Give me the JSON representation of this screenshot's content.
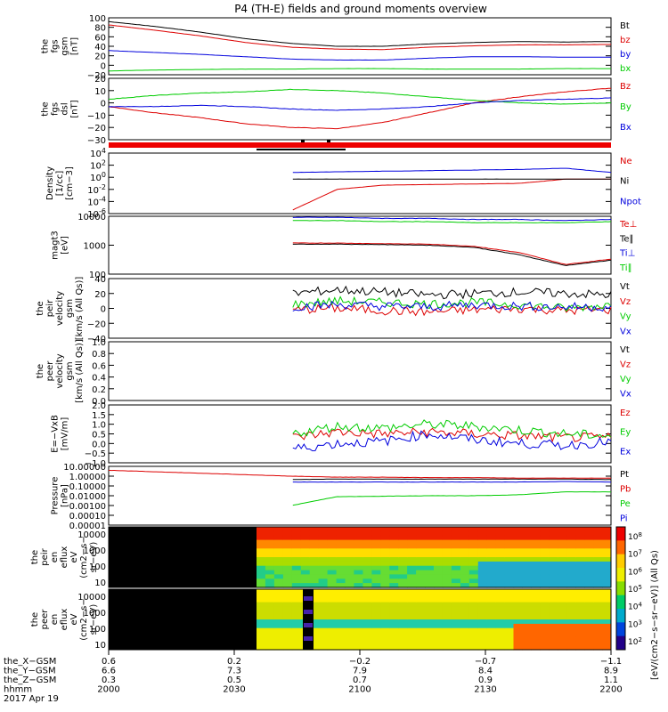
{
  "title": "P4 (TH-E) fields and ground moments overview",
  "chart_data": {
    "type": "line",
    "x_range": [
      "2000",
      "2200"
    ],
    "panels": [
      {
        "id": "fgs_gsm",
        "ylabel": [
          "the",
          "fgs",
          "gsm",
          "[nT]"
        ],
        "ylim": [
          -20,
          100
        ],
        "yticks": [
          "100",
          "80",
          "60",
          "40",
          "20",
          "0",
          "−20"
        ],
        "series": [
          {
            "name": "Bt",
            "color": "#000000",
            "values": [
              92,
              82,
              70,
              56,
              46,
              40,
              40,
              45,
              48,
              50,
              49,
              50
            ]
          },
          {
            "name": "bz",
            "color": "#dd0000",
            "values": [
              85,
              74,
              62,
              48,
              38,
              34,
              33,
              38,
              41,
              43,
              43,
              44
            ]
          },
          {
            "name": "by",
            "color": "#0000dd",
            "values": [
              31,
              27,
              23,
              18,
              13,
              11,
              11,
              15,
              18,
              18,
              17,
              17
            ]
          },
          {
            "name": "bx",
            "color": "#00cc00",
            "values": [
              -12,
              -10,
              -9,
              -8,
              -8,
              -7,
              -7,
              -8,
              -8,
              -8,
              -7,
              -7
            ]
          }
        ]
      },
      {
        "id": "fgs_dsl",
        "ylabel": [
          "the",
          "fgs",
          "dsl",
          "[nT]"
        ],
        "ylim": [
          -30,
          20
        ],
        "yticks": [
          "20",
          "10",
          "0",
          "−10",
          "−20",
          "−30"
        ],
        "series": [
          {
            "name": "Bz",
            "color": "#dd0000",
            "values": [
              -3,
              -8,
              -12,
              -17,
              -20,
              -21,
              -16,
              -8,
              0,
              5,
              9,
              12
            ]
          },
          {
            "name": "By",
            "color": "#00cc00",
            "values": [
              3,
              6,
              8,
              9,
              11,
              10,
              8,
              5,
              2,
              0,
              -1,
              0
            ]
          },
          {
            "name": "Bx",
            "color": "#0000dd",
            "values": [
              -3,
              -3,
              -2,
              -3,
              -5,
              -6,
              -5,
              -3,
              0,
              2,
              3,
              4
            ]
          }
        ]
      },
      {
        "id": "density",
        "ylabel": [
          "Density",
          "[1/cc]",
          "[cm−3]"
        ],
        "ylim": [
          -6,
          4
        ],
        "yticks": [
          "10^4",
          "10^2",
          "10^0",
          "10^-2",
          "10^-4",
          "10^-6"
        ],
        "log": true,
        "series": [
          {
            "name": "Ne",
            "color": "#dd0000",
            "values": [
              null,
              null,
              null,
              null,
              -5.5,
              -2,
              -1.3,
              -1.2,
              -1.1,
              -1,
              -0.3,
              -0.3
            ]
          },
          {
            "name": "Ni",
            "color": "#000000",
            "values": [
              null,
              null,
              null,
              null,
              -0.3,
              -0.3,
              -0.3,
              -0.3,
              -0.3,
              -0.3,
              -0.3,
              -0.3
            ]
          },
          {
            "name": "Npot",
            "color": "#0000dd",
            "values": [
              null,
              null,
              null,
              null,
              0.8,
              0.9,
              1,
              1.1,
              1.2,
              1.3,
              1.5,
              0.8
            ]
          }
        ]
      },
      {
        "id": "temperature",
        "ylabel": [
          "magt3",
          "[eV]"
        ],
        "ylim": [
          1.3,
          4
        ],
        "yticks": [
          "10000",
          "1000",
          "100"
        ],
        "log": true,
        "series": [
          {
            "name": "Te⊥",
            "color": "#dd0000",
            "values": [
              null,
              null,
              null,
              null,
              2.75,
              2.75,
              2.72,
              2.7,
              2.6,
              2.3,
              1.75,
              2
            ]
          },
          {
            "name": "Te∥",
            "color": "#000000",
            "values": [
              null,
              null,
              null,
              null,
              2.7,
              2.7,
              2.68,
              2.65,
              2.55,
              2.2,
              1.7,
              1.95
            ]
          },
          {
            "name": "Ti⊥",
            "color": "#0000dd",
            "values": [
              null,
              null,
              null,
              null,
              3.95,
              3.95,
              3.9,
              3.9,
              3.85,
              3.85,
              3.8,
              3.85
            ]
          },
          {
            "name": "Ti∥",
            "color": "#00cc00",
            "values": [
              null,
              null,
              null,
              null,
              3.8,
              3.8,
              3.75,
              3.75,
              3.7,
              3.7,
              3.7,
              3.75
            ]
          }
        ]
      },
      {
        "id": "peir_velocity",
        "ylabel": [
          "the",
          "peir",
          "velocity",
          "gsm",
          "[km/s (All Qs)]"
        ],
        "ylim": [
          -40,
          40
        ],
        "yticks": [
          "40",
          "20",
          "0",
          "−20",
          "−40"
        ],
        "series": [
          {
            "name": "Vt",
            "color": "#000000",
            "values": [
              null,
              null,
              null,
              null,
              20,
              25,
              22,
              18,
              20,
              22,
              20,
              18
            ]
          },
          {
            "name": "Vz",
            "color": "#dd0000",
            "values": [
              null,
              null,
              null,
              null,
              -2,
              0,
              -3,
              -5,
              -2,
              0,
              -3,
              -2
            ]
          },
          {
            "name": "Vy",
            "color": "#00cc00",
            "values": [
              null,
              null,
              null,
              null,
              5,
              10,
              8,
              6,
              8,
              5,
              0,
              5
            ]
          },
          {
            "name": "Vx",
            "color": "#0000dd",
            "values": [
              null,
              null,
              null,
              null,
              2,
              5,
              3,
              2,
              5,
              3,
              2,
              2
            ]
          }
        ]
      },
      {
        "id": "peer_velocity",
        "ylabel": [
          "the",
          "peer",
          "velocity",
          "gsm",
          "[km/s (All Qs)]"
        ],
        "ylim": [
          0,
          1
        ],
        "yticks": [
          "1.0",
          "0.8",
          "0.6",
          "0.4",
          "0.2",
          "0.0"
        ],
        "series": [
          {
            "name": "Vt",
            "color": "#000000",
            "values": []
          },
          {
            "name": "Vz",
            "color": "#dd0000",
            "values": []
          },
          {
            "name": "Vy",
            "color": "#00cc00",
            "values": []
          },
          {
            "name": "Vx",
            "color": "#0000dd",
            "values": []
          }
        ]
      },
      {
        "id": "efield",
        "ylabel": [
          "E=−VxB",
          "[mV/m]"
        ],
        "ylim": [
          -1,
          2
        ],
        "yticks": [
          "2.0",
          "1.5",
          "1.0",
          "0.5",
          "0.0",
          "−0.5",
          "−1.0"
        ],
        "series": [
          {
            "name": "Ez",
            "color": "#dd0000",
            "values": [
              null,
              null,
              null,
              null,
              0.3,
              0.6,
              0.5,
              0.6,
              0.5,
              0.4,
              0.3,
              0.3
            ]
          },
          {
            "name": "Ey",
            "color": "#00cc00",
            "values": [
              null,
              null,
              null,
              null,
              0.5,
              0.9,
              0.8,
              1,
              0.9,
              0.7,
              0.5,
              0.4
            ]
          },
          {
            "name": "Ex",
            "color": "#0000dd",
            "values": [
              null,
              null,
              null,
              null,
              -0.3,
              0,
              0.1,
              0.5,
              0.2,
              0,
              -0.1,
              0.1
            ]
          }
        ]
      },
      {
        "id": "pressure",
        "ylabel": [
          "Pressure",
          "[nPa]"
        ],
        "ylim": [
          -5,
          1
        ],
        "yticks": [
          "10.00000",
          "1.00000",
          "0.10000",
          "0.01000",
          "0.00100",
          "0.00010",
          "0.00001"
        ],
        "log": true,
        "series": [
          {
            "name": "Pt",
            "color": "#000000",
            "values": [
              null,
              null,
              null,
              null,
              -0.35,
              -0.3,
              -0.3,
              -0.3,
              -0.3,
              -0.3,
              -0.3,
              -0.35
            ]
          },
          {
            "name": "Pb",
            "color": "#dd0000",
            "values": [
              0.6,
              0.45,
              0.3,
              0.15,
              0,
              -0.1,
              -0.1,
              -0.15,
              -0.15,
              -0.2,
              -0.2,
              -0.2
            ]
          },
          {
            "name": "Pe",
            "color": "#00cc00",
            "values": [
              null,
              null,
              null,
              null,
              -3,
              -2.1,
              -2.05,
              -2,
              -2,
              -1.9,
              -1.6,
              -1.6
            ]
          },
          {
            "name": "Pi",
            "color": "#0000dd",
            "values": [
              null,
              null,
              null,
              null,
              -0.6,
              -0.6,
              -0.6,
              -0.6,
              -0.6,
              -0.6,
              -0.55,
              -0.6
            ]
          }
        ]
      }
    ],
    "spectrograms": [
      {
        "id": "peir_en_eflux",
        "ylabel": [
          "the",
          "peir",
          "en",
          "eflux",
          "eV",
          "(cm2−s−",
          "sr−eV)"
        ],
        "yticks": [
          "10000",
          "1000",
          "100",
          "10"
        ]
      },
      {
        "id": "peer_en_eflux",
        "ylabel": [
          "the",
          "peer",
          "en",
          "eflux",
          "eV",
          "(cm2−s−",
          "sr−eV)"
        ],
        "yticks": [
          "10000",
          "1000",
          "100",
          "10"
        ]
      }
    ],
    "colorbar": {
      "label": "[eV/(cm2−s−sr−eV)] (All Qs)",
      "ticks": [
        "10^8",
        "10^7",
        "10^6",
        "10^5",
        "10^4",
        "10^3",
        "10^2"
      ]
    },
    "bottom_axis": {
      "row_labels": [
        "the_X−GSM",
        "the_Y−GSM",
        "the_Z−GSM",
        "hhmm",
        "2017 Apr 19"
      ],
      "columns": [
        [
          "0.6",
          "6.6",
          "0.3",
          "2000"
        ],
        [
          "0.2",
          "7.3",
          "0.5",
          "2030"
        ],
        [
          "−0.2",
          "7.9",
          "0.7",
          "2100"
        ],
        [
          "−0.7",
          "8.4",
          "0.9",
          "2130"
        ],
        [
          "−1.1",
          "8.9",
          "1.1",
          "2200"
        ]
      ]
    }
  }
}
